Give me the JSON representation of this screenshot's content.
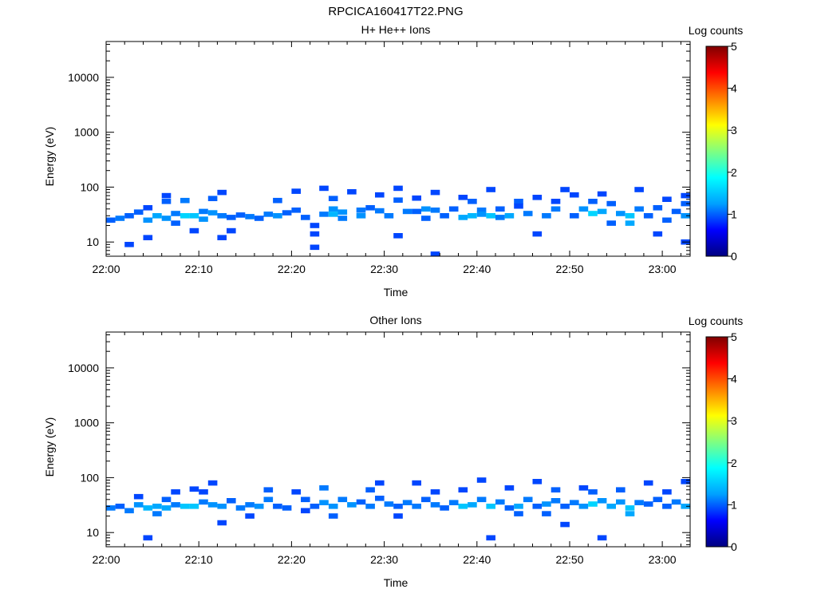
{
  "title": "RPCICA160417T22.PNG",
  "colorbar": {
    "label": "Log counts",
    "min": 0,
    "max": 5,
    "ticks": [
      "0",
      "1",
      "2",
      "3",
      "4",
      "5"
    ],
    "colormap": [
      "#000080",
      "#0000ff",
      "#00a0ff",
      "#00ffff",
      "#80ff80",
      "#ffff00",
      "#ff8000",
      "#ff0000",
      "#800000"
    ]
  },
  "chart_data": [
    {
      "type": "heatmap",
      "title": "H+ He++ Ions",
      "xlabel": "Time",
      "ylabel": "Energy (eV)",
      "y_scale": "log",
      "ylim": [
        5.5,
        45000
      ],
      "xlim": [
        "22:00",
        "23:03"
      ],
      "x_ticks": [
        "22:00",
        "22:10",
        "22:20",
        "22:30",
        "22:40",
        "22:50",
        "23:00"
      ],
      "y_ticks": [
        "10",
        "100",
        "1000",
        "10000"
      ],
      "cells": [
        [
          "22:00",
          25,
          1.0
        ],
        [
          "22:01",
          27,
          1.1
        ],
        [
          "22:02",
          30,
          1.0
        ],
        [
          "22:02",
          9,
          0.9
        ],
        [
          "22:03",
          35,
          1.0
        ],
        [
          "22:04",
          25,
          1.2
        ],
        [
          "22:04",
          42,
          0.9
        ],
        [
          "22:04",
          12,
          0.9
        ],
        [
          "22:05",
          30,
          1.3
        ],
        [
          "22:06",
          27,
          1.2
        ],
        [
          "22:06",
          55,
          1.0
        ],
        [
          "22:06",
          70,
          0.9
        ],
        [
          "22:07",
          33,
          1.1
        ],
        [
          "22:07",
          22,
          1.0
        ],
        [
          "22:08",
          30,
          1.6
        ],
        [
          "22:08",
          57,
          1.1
        ],
        [
          "22:09",
          30,
          1.5
        ],
        [
          "22:09",
          16,
          0.9
        ],
        [
          "22:10",
          36,
          1.1
        ],
        [
          "22:10",
          26,
          1.2
        ],
        [
          "22:11",
          34,
          1.2
        ],
        [
          "22:11",
          62,
          1.0
        ],
        [
          "22:12",
          80,
          0.9
        ],
        [
          "22:12",
          12,
          0.9
        ],
        [
          "22:12",
          30,
          1.1
        ],
        [
          "22:13",
          28,
          1.0
        ],
        [
          "22:13",
          16,
          0.9
        ],
        [
          "22:14",
          31,
          1.0
        ],
        [
          "22:15",
          29,
          1.1
        ],
        [
          "22:16",
          27,
          1.0
        ],
        [
          "22:17",
          32,
          1.1
        ],
        [
          "22:18",
          30,
          1.2
        ],
        [
          "22:18",
          57,
          1.0
        ],
        [
          "22:19",
          34,
          1.0
        ],
        [
          "22:20",
          84,
          0.9
        ],
        [
          "22:20",
          38,
          1.0
        ],
        [
          "22:21",
          28,
          1.0
        ],
        [
          "22:22",
          20,
          0.9
        ],
        [
          "22:22",
          14,
          0.9
        ],
        [
          "22:22",
          8,
          0.9
        ],
        [
          "22:23",
          32,
          1.1
        ],
        [
          "22:23",
          95,
          0.9
        ],
        [
          "22:24",
          40,
          1.2
        ],
        [
          "22:24",
          32,
          1.4
        ],
        [
          "22:24",
          62,
          1.0
        ],
        [
          "22:25",
          35,
          1.2
        ],
        [
          "22:25",
          27,
          1.1
        ],
        [
          "22:26",
          82,
          0.9
        ],
        [
          "22:27",
          38,
          1.1
        ],
        [
          "22:27",
          30,
          1.2
        ],
        [
          "22:28",
          42,
          1.0
        ],
        [
          "22:29",
          37,
          1.1
        ],
        [
          "22:29",
          72,
          0.9
        ],
        [
          "22:30",
          30,
          1.1
        ],
        [
          "22:31",
          58,
          1.0
        ],
        [
          "22:31",
          13,
          0.9
        ],
        [
          "22:31",
          95,
          0.9
        ],
        [
          "22:32",
          36,
          1.1
        ],
        [
          "22:33",
          36,
          1.0
        ],
        [
          "22:33",
          63,
          0.9
        ],
        [
          "22:34",
          40,
          1.2
        ],
        [
          "22:34",
          27,
          1.0
        ],
        [
          "22:35",
          38,
          1.1
        ],
        [
          "22:35",
          80,
          0.9
        ],
        [
          "22:35",
          6,
          0.9
        ],
        [
          "22:36",
          30,
          1.0
        ],
        [
          "22:37",
          40,
          1.0
        ],
        [
          "22:38",
          28,
          1.3
        ],
        [
          "22:38",
          65,
          0.9
        ],
        [
          "22:39",
          30,
          1.4
        ],
        [
          "22:39",
          55,
          1.0
        ],
        [
          "22:40",
          38,
          1.1
        ],
        [
          "22:40",
          32,
          1.2
        ],
        [
          "22:41",
          30,
          1.5
        ],
        [
          "22:41",
          90,
          0.9
        ],
        [
          "22:42",
          40,
          1.0
        ],
        [
          "22:42",
          28,
          1.1
        ],
        [
          "22:43",
          30,
          1.3
        ],
        [
          "22:44",
          55,
          1.0
        ],
        [
          "22:44",
          45,
          0.9
        ],
        [
          "22:45",
          33,
          1.1
        ],
        [
          "22:46",
          65,
          0.9
        ],
        [
          "22:46",
          14,
          0.9
        ],
        [
          "22:47",
          30,
          1.1
        ],
        [
          "22:48",
          40,
          1.1
        ],
        [
          "22:48",
          55,
          0.9
        ],
        [
          "22:49",
          90,
          0.9
        ],
        [
          "22:50",
          30,
          1.0
        ],
        [
          "22:50",
          72,
          0.9
        ],
        [
          "22:51",
          40,
          1.2
        ],
        [
          "22:52",
          33,
          1.6
        ],
        [
          "22:52",
          55,
          1.0
        ],
        [
          "22:53",
          36,
          1.3
        ],
        [
          "22:53",
          75,
          0.9
        ],
        [
          "22:54",
          22,
          1.0
        ],
        [
          "22:54",
          50,
          1.0
        ],
        [
          "22:55",
          33,
          1.2
        ],
        [
          "22:56",
          30,
          1.5
        ],
        [
          "22:56",
          22,
          1.3
        ],
        [
          "22:57",
          40,
          1.1
        ],
        [
          "22:57",
          90,
          0.9
        ],
        [
          "22:58",
          30,
          1.0
        ],
        [
          "22:59",
          42,
          1.0
        ],
        [
          "22:59",
          14,
          0.9
        ],
        [
          "23:00",
          25,
          1.0
        ],
        [
          "23:00",
          60,
          0.9
        ],
        [
          "23:01",
          36,
          1.0
        ],
        [
          "23:02",
          30,
          1.2
        ],
        [
          "23:02",
          50,
          1.0
        ],
        [
          "23:02",
          70,
          0.9
        ],
        [
          "23:02",
          10,
          0.9
        ]
      ]
    },
    {
      "type": "heatmap",
      "title": "Other Ions",
      "xlabel": "Time",
      "ylabel": "Energy (eV)",
      "y_scale": "log",
      "ylim": [
        5.5,
        45000
      ],
      "xlim": [
        "22:00",
        "23:03"
      ],
      "x_ticks": [
        "22:00",
        "22:10",
        "22:20",
        "22:30",
        "22:40",
        "22:50",
        "23:00"
      ],
      "y_ticks": [
        "10",
        "100",
        "1000",
        "10000"
      ],
      "cells": [
        [
          "22:00",
          28,
          1.1
        ],
        [
          "22:01",
          30,
          1.0
        ],
        [
          "22:02",
          25,
          1.1
        ],
        [
          "22:03",
          32,
          1.2
        ],
        [
          "22:03",
          45,
          0.9
        ],
        [
          "22:04",
          28,
          1.4
        ],
        [
          "22:04",
          8,
          0.9
        ],
        [
          "22:05",
          30,
          1.3
        ],
        [
          "22:05",
          22,
          1.1
        ],
        [
          "22:06",
          28,
          1.3
        ],
        [
          "22:06",
          40,
          1.0
        ],
        [
          "22:07",
          32,
          1.1
        ],
        [
          "22:07",
          55,
          0.9
        ],
        [
          "22:08",
          30,
          1.5
        ],
        [
          "22:09",
          30,
          1.5
        ],
        [
          "22:09",
          62,
          0.9
        ],
        [
          "22:10",
          36,
          1.1
        ],
        [
          "22:10",
          55,
          0.9
        ],
        [
          "22:11",
          32,
          1.2
        ],
        [
          "22:11",
          80,
          0.9
        ],
        [
          "22:12",
          30,
          1.2
        ],
        [
          "22:12",
          15,
          0.9
        ],
        [
          "22:13",
          38,
          1.0
        ],
        [
          "22:14",
          28,
          1.1
        ],
        [
          "22:15",
          32,
          1.1
        ],
        [
          "22:15",
          20,
          0.9
        ],
        [
          "22:16",
          30,
          1.2
        ],
        [
          "22:17",
          40,
          1.1
        ],
        [
          "22:17",
          60,
          1.0
        ],
        [
          "22:18",
          30,
          1.0
        ],
        [
          "22:19",
          28,
          1.0
        ],
        [
          "22:20",
          55,
          0.9
        ],
        [
          "22:21",
          40,
          1.0
        ],
        [
          "22:21",
          25,
          0.9
        ],
        [
          "22:22",
          30,
          1.0
        ],
        [
          "22:23",
          35,
          1.2
        ],
        [
          "22:23",
          65,
          1.1
        ],
        [
          "22:24",
          30,
          1.2
        ],
        [
          "22:24",
          20,
          1.0
        ],
        [
          "22:25",
          40,
          1.1
        ],
        [
          "22:26",
          32,
          1.2
        ],
        [
          "22:27",
          36,
          1.0
        ],
        [
          "22:28",
          30,
          1.1
        ],
        [
          "22:28",
          60,
          1.0
        ],
        [
          "22:29",
          42,
          1.0
        ],
        [
          "22:29",
          80,
          0.9
        ],
        [
          "22:30",
          33,
          1.1
        ],
        [
          "22:31",
          30,
          1.0
        ],
        [
          "22:31",
          20,
          0.9
        ],
        [
          "22:32",
          35,
          1.1
        ],
        [
          "22:33",
          30,
          1.1
        ],
        [
          "22:33",
          80,
          0.9
        ],
        [
          "22:34",
          40,
          1.0
        ],
        [
          "22:35",
          32,
          1.1
        ],
        [
          "22:35",
          55,
          0.9
        ],
        [
          "22:36",
          28,
          1.0
        ],
        [
          "22:37",
          35,
          1.1
        ],
        [
          "22:38",
          30,
          1.5
        ],
        [
          "22:38",
          60,
          0.9
        ],
        [
          "22:39",
          32,
          1.3
        ],
        [
          "22:40",
          40,
          1.1
        ],
        [
          "22:40",
          90,
          0.9
        ],
        [
          "22:41",
          30,
          1.5
        ],
        [
          "22:41",
          8,
          0.9
        ],
        [
          "22:42",
          36,
          1.1
        ],
        [
          "22:43",
          28,
          1.0
        ],
        [
          "22:43",
          65,
          0.9
        ],
        [
          "22:44",
          30,
          1.3
        ],
        [
          "22:44",
          22,
          1.0
        ],
        [
          "22:45",
          40,
          1.1
        ],
        [
          "22:46",
          30,
          1.0
        ],
        [
          "22:46",
          85,
          0.9
        ],
        [
          "22:47",
          33,
          1.2
        ],
        [
          "22:47",
          22,
          1.0
        ],
        [
          "22:48",
          38,
          1.1
        ],
        [
          "22:48",
          60,
          1.0
        ],
        [
          "22:49",
          30,
          1.0
        ],
        [
          "22:49",
          14,
          0.9
        ],
        [
          "22:50",
          35,
          1.1
        ],
        [
          "22:51",
          30,
          1.2
        ],
        [
          "22:51",
          65,
          0.9
        ],
        [
          "22:52",
          33,
          1.6
        ],
        [
          "22:52",
          55,
          1.0
        ],
        [
          "22:53",
          38,
          1.2
        ],
        [
          "22:53",
          8,
          0.9
        ],
        [
          "22:54",
          30,
          1.3
        ],
        [
          "22:55",
          36,
          1.2
        ],
        [
          "22:55",
          60,
          1.0
        ],
        [
          "22:56",
          28,
          1.5
        ],
        [
          "22:56",
          22,
          1.3
        ],
        [
          "22:57",
          35,
          1.1
        ],
        [
          "22:58",
          33,
          1.0
        ],
        [
          "22:58",
          80,
          0.9
        ],
        [
          "22:59",
          40,
          1.0
        ],
        [
          "23:00",
          30,
          1.0
        ],
        [
          "23:00",
          55,
          0.9
        ],
        [
          "23:01",
          36,
          1.1
        ],
        [
          "23:02",
          30,
          1.3
        ],
        [
          "23:02",
          85,
          0.9
        ]
      ]
    }
  ]
}
